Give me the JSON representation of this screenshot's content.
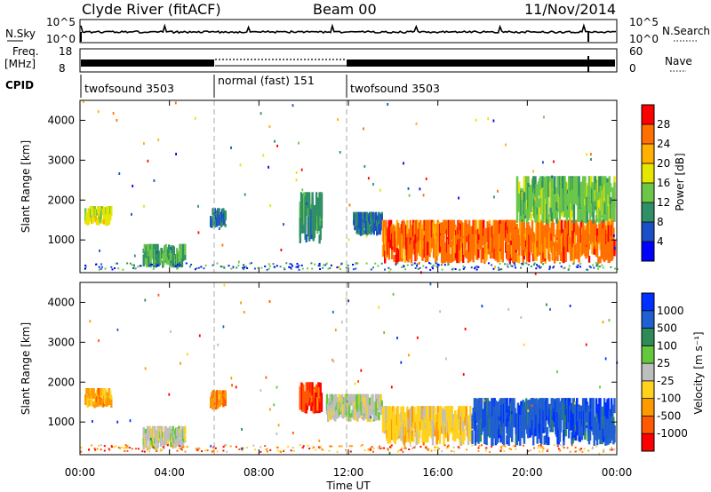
{
  "header": {
    "station": "Clyde River (fitACF)",
    "beam": "Beam 00",
    "date": "11/Nov/2014"
  },
  "noise_panel": {
    "left_label": "N.Sky",
    "right_label": "N.Search",
    "left_ticks": [
      "10^5",
      "10^0"
    ],
    "right_ticks": [
      "10^5",
      "10^0"
    ]
  },
  "freq_panel": {
    "left_label_1": "Freq.",
    "left_label_2": "[MHz]",
    "right_label": "Nave",
    "left_ticks": [
      "18",
      "8"
    ],
    "right_ticks": [
      "60",
      "0"
    ],
    "freq_mhz": [
      8,
      18
    ],
    "nave": [
      0,
      60
    ]
  },
  "cpid": {
    "label": "CPID",
    "segments": [
      {
        "name": "twofsound 3503",
        "start": 0,
        "end": 6
      },
      {
        "name": "normal (fast) 151",
        "start": 6,
        "end": 12
      },
      {
        "name": "twofsound 3503",
        "start": 12,
        "end": 24
      }
    ]
  },
  "x_axis": {
    "label": "Time UT",
    "ticks": [
      "00:00",
      "04:00",
      "08:00",
      "12:00",
      "16:00",
      "20:00",
      "00:00"
    ],
    "range_hours": [
      0,
      24
    ]
  },
  "power_panel": {
    "ylabel": "Slant Range [km]",
    "yticks": [
      "1000",
      "2000",
      "3000",
      "4000"
    ],
    "colorbar_label": "Power [dB]",
    "colorbar_ticks": [
      "28",
      "24",
      "20",
      "16",
      "12",
      "8",
      "4"
    ],
    "colors": [
      "#0000ff",
      "#1a4fc8",
      "#2f8f66",
      "#6bc64a",
      "#e6e600",
      "#ffb000",
      "#ff7000",
      "#ff0000"
    ]
  },
  "velocity_panel": {
    "ylabel": "Slant Range [km]",
    "yticks": [
      "1000",
      "2000",
      "3000",
      "4000"
    ],
    "colorbar_label": "Velocity [m s⁻¹]",
    "colorbar_ticks": [
      "1000",
      "500",
      "100",
      "25",
      "-25",
      "-100",
      "-500",
      "-1000"
    ],
    "colors": [
      "#0030ff",
      "#2060d0",
      "#2e8b57",
      "#64c83c",
      "#bebebe",
      "#ffd21e",
      "#ff9900",
      "#ff5a00",
      "#ff0000"
    ]
  },
  "chart_data": [
    {
      "type": "heatmap",
      "title": "Power",
      "xlabel": "Time UT",
      "ylabel": "Slant Range [km]",
      "x_range_hours": [
        0,
        24
      ],
      "y_range_km": [
        180,
        4500
      ],
      "z_label": "Power [dB]",
      "z_range": [
        0,
        32
      ],
      "patches": [
        {
          "t0": 0.2,
          "t1": 1.4,
          "r0": 1350,
          "r1": 1850,
          "value": 18
        },
        {
          "t0": 2.8,
          "t1": 4.7,
          "r0": 300,
          "r1": 900,
          "value": 12
        },
        {
          "t0": 5.8,
          "t1": 6.5,
          "r0": 1300,
          "r1": 1800,
          "value": 8
        },
        {
          "t0": 9.8,
          "t1": 10.8,
          "r0": 900,
          "r1": 2200,
          "value": 10
        },
        {
          "t0": 12.2,
          "t1": 13.5,
          "r0": 1100,
          "r1": 1700,
          "value": 8
        },
        {
          "t0": 13.5,
          "t1": 23.9,
          "r0": 400,
          "r1": 1500,
          "value": 26
        },
        {
          "t0": 19.5,
          "t1": 23.9,
          "r0": 1400,
          "r1": 2600,
          "value": 14
        }
      ]
    },
    {
      "type": "heatmap",
      "title": "Velocity",
      "xlabel": "Time UT",
      "ylabel": "Slant Range [km]",
      "x_range_hours": [
        0,
        24
      ],
      "y_range_km": [
        180,
        4500
      ],
      "z_label": "Velocity [m s-1]",
      "z_range": [
        -1000,
        1000
      ],
      "patches": [
        {
          "t0": 0.2,
          "t1": 1.4,
          "r0": 1350,
          "r1": 1850,
          "value": -400
        },
        {
          "t0": 2.8,
          "t1": 4.7,
          "r0": 300,
          "r1": 900,
          "value": 0
        },
        {
          "t0": 5.8,
          "t1": 6.5,
          "r0": 1300,
          "r1": 1800,
          "value": -500
        },
        {
          "t0": 9.8,
          "t1": 10.8,
          "r0": 1200,
          "r1": 2000,
          "value": -700
        },
        {
          "t0": 11.0,
          "t1": 13.5,
          "r0": 1000,
          "r1": 1700,
          "value": 0
        },
        {
          "t0": 13.5,
          "t1": 17.5,
          "r0": 400,
          "r1": 1400,
          "value": -200
        },
        {
          "t0": 17.5,
          "t1": 23.9,
          "r0": 400,
          "r1": 1600,
          "value": 700
        }
      ]
    }
  ]
}
